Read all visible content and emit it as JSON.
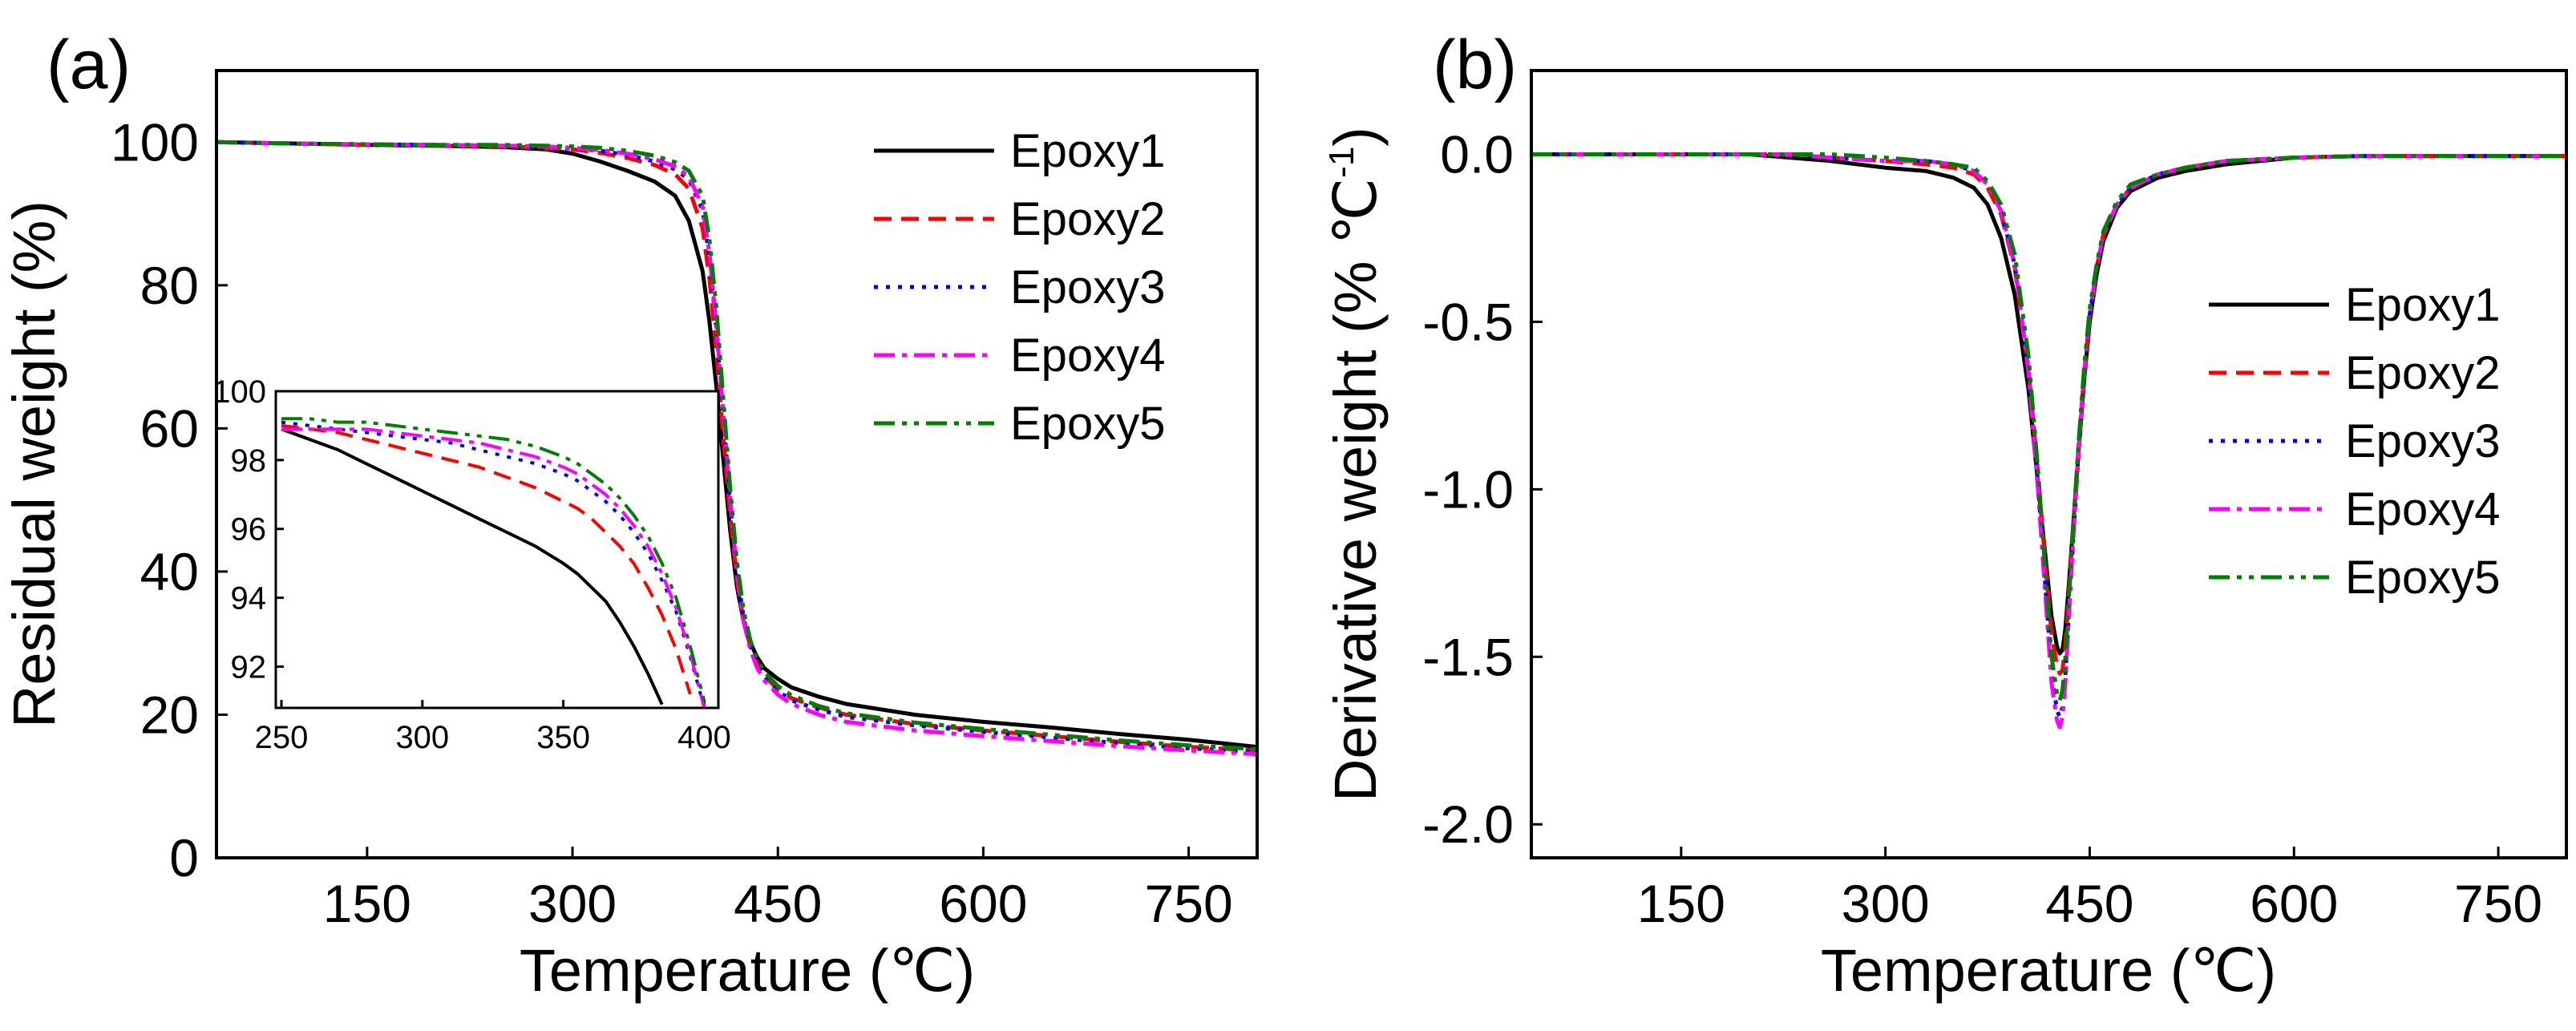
{
  "chart_data": [
    {
      "type": "line",
      "panel_label": "(a)",
      "xlabel": "Temperature (℃)",
      "ylabel": "Residual weight (%)",
      "xlim": [
        40,
        800
      ],
      "ylim": [
        0,
        110
      ],
      "x_ticks": [
        150,
        300,
        450,
        600,
        750
      ],
      "x_tick_labels": [
        "150",
        "300",
        "450",
        "600",
        "750"
      ],
      "y_ticks": [
        0,
        20,
        40,
        60,
        80,
        100
      ],
      "y_tick_labels": [
        "0",
        "20",
        "40",
        "60",
        "80",
        "100"
      ],
      "legend_position": "top-right",
      "x": [
        40,
        100,
        150,
        200,
        250,
        280,
        300,
        320,
        340,
        360,
        375,
        385,
        395,
        400,
        405,
        410,
        415,
        420,
        425,
        430,
        435,
        440,
        450,
        460,
        480,
        500,
        550,
        600,
        650,
        700,
        750,
        800
      ],
      "series": [
        {
          "name": "Epoxy1",
          "color": "#000000",
          "dash": "",
          "values": [
            100,
            99.8,
            99.6,
            99.5,
            99.3,
            99.0,
            98.4,
            97.3,
            96.0,
            94.5,
            92.5,
            89.0,
            82.0,
            75.0,
            66.0,
            56.0,
            46.0,
            38.0,
            33.0,
            30.0,
            28.0,
            26.5,
            25.0,
            23.8,
            22.5,
            21.5,
            20.0,
            19.0,
            18.2,
            17.3,
            16.5,
            15.5
          ]
        },
        {
          "name": "Epoxy2",
          "color": "#ff0000",
          "dash": "22,12",
          "values": [
            100,
            99.8,
            99.6,
            99.5,
            99.4,
            99.2,
            99.0,
            98.5,
            97.8,
            96.8,
            95.5,
            93.5,
            88.0,
            81.0,
            71.0,
            59.0,
            48.0,
            39.0,
            33.0,
            29.5,
            27.0,
            25.5,
            23.5,
            22.3,
            21.0,
            20.0,
            18.7,
            17.8,
            17.0,
            16.2,
            15.5,
            15.0
          ]
        },
        {
          "name": "Epoxy3",
          "color": "#0000ff",
          "dash": "5,10",
          "values": [
            100,
            99.8,
            99.7,
            99.6,
            99.5,
            99.3,
            99.1,
            98.8,
            98.2,
            97.3,
            96.2,
            94.8,
            90.5,
            84.0,
            74.0,
            62.0,
            50.0,
            40.0,
            33.5,
            29.5,
            27.0,
            25.3,
            23.3,
            22.0,
            20.7,
            19.7,
            18.5,
            17.6,
            16.8,
            16.0,
            15.3,
            14.8
          ]
        },
        {
          "name": "Epoxy4",
          "color": "#ff00ff",
          "dash": "26,9,6,9",
          "values": [
            100,
            99.8,
            99.7,
            99.6,
            99.5,
            99.4,
            99.2,
            98.9,
            98.4,
            97.6,
            96.6,
            95.2,
            91.0,
            84.5,
            74.5,
            62.5,
            50.5,
            40.0,
            33.0,
            29.0,
            26.5,
            24.8,
            22.8,
            21.5,
            20.0,
            19.0,
            17.8,
            17.0,
            16.3,
            15.6,
            15.0,
            14.5
          ]
        },
        {
          "name": "Epoxy5",
          "color": "#008000",
          "dash": "26,9,6,9,6,9",
          "values": [
            100,
            99.8,
            99.7,
            99.6,
            99.6,
            99.5,
            99.4,
            99.2,
            98.8,
            98.1,
            97.2,
            96.0,
            92.5,
            86.5,
            77.0,
            64.5,
            52.0,
            41.5,
            34.5,
            30.3,
            27.7,
            26.0,
            24.0,
            22.7,
            21.2,
            20.2,
            18.9,
            18.0,
            17.2,
            16.4,
            15.7,
            15.2
          ]
        }
      ],
      "inset": {
        "xlim": [
          248,
          405
        ],
        "ylim": [
          90.8,
          100
        ],
        "x_ticks": [
          250,
          300,
          350,
          400
        ],
        "x_tick_labels": [
          "250",
          "300",
          "350",
          "400"
        ],
        "y_ticks": [
          92,
          94,
          96,
          98,
          100
        ],
        "y_tick_labels": [
          "92",
          "94",
          "96",
          "98",
          "100"
        ],
        "x": [
          250,
          260,
          270,
          280,
          290,
          300,
          310,
          320,
          330,
          340,
          350,
          355,
          360,
          365,
          370,
          375,
          380,
          385,
          390,
          395,
          400
        ],
        "series": [
          {
            "name": "Epoxy1",
            "values": [
              98.9,
              98.6,
              98.3,
              97.9,
              97.5,
              97.1,
              96.7,
              96.3,
              95.9,
              95.5,
              95.0,
              94.7,
              94.3,
              93.9,
              93.3,
              92.6,
              91.8,
              90.9,
              null,
              null,
              null
            ]
          },
          {
            "name": "Epoxy2",
            "values": [
              99.0,
              98.9,
              98.8,
              98.6,
              98.4,
              98.2,
              98.0,
              97.8,
              97.5,
              97.2,
              96.8,
              96.6,
              96.3,
              95.9,
              95.5,
              95.0,
              94.3,
              93.5,
              92.5,
              91.2,
              null
            ]
          },
          {
            "name": "Epoxy3",
            "values": [
              99.1,
              99.0,
              98.9,
              98.8,
              98.7,
              98.6,
              98.5,
              98.3,
              98.1,
              97.9,
              97.6,
              97.4,
              97.1,
              96.8,
              96.4,
              95.9,
              95.3,
              94.5,
              93.6,
              92.3,
              90.8
            ]
          },
          {
            "name": "Epoxy4",
            "values": [
              98.9,
              98.9,
              98.9,
              98.9,
              98.8,
              98.7,
              98.6,
              98.5,
              98.3,
              98.1,
              97.8,
              97.6,
              97.3,
              97.0,
              96.6,
              96.1,
              95.5,
              94.7,
              93.7,
              92.4,
              90.8
            ]
          },
          {
            "name": "Epoxy5",
            "values": [
              99.2,
              99.2,
              99.1,
              99.1,
              99.0,
              98.9,
              98.8,
              98.7,
              98.6,
              98.4,
              98.1,
              97.9,
              97.6,
              97.3,
              96.9,
              96.4,
              95.8,
              95.0,
              94.0,
              92.6,
              91.0
            ]
          }
        ]
      }
    },
    {
      "type": "line",
      "panel_label": "(b)",
      "xlabel": "Temperature (℃)",
      "ylabel_main": "Derivative weight (% ℃",
      "ylabel_sup": "-1",
      "ylabel_close": ")",
      "xlim": [
        40,
        800
      ],
      "ylim": [
        -2.1,
        0.25
      ],
      "x_ticks": [
        150,
        300,
        450,
        600,
        750
      ],
      "x_tick_labels": [
        "150",
        "300",
        "450",
        "600",
        "750"
      ],
      "y_ticks": [
        0.0,
        -0.5,
        -1.0,
        -1.5,
        -2.0
      ],
      "y_tick_labels": [
        "0.0",
        "-0.5",
        "-1.0",
        "-1.5",
        "-2.0"
      ],
      "legend_position": "center-right",
      "x": [
        40,
        100,
        150,
        200,
        230,
        260,
        300,
        330,
        350,
        365,
        375,
        385,
        395,
        405,
        412,
        418,
        422,
        426,
        428,
        430,
        432,
        434,
        438,
        442,
        446,
        450,
        455,
        460,
        470,
        480,
        500,
        520,
        550,
        600,
        650,
        700,
        750,
        800
      ],
      "series": [
        {
          "name": "Epoxy1",
          "color": "#000000",
          "dash": "",
          "values": [
            0,
            0,
            0,
            0,
            -0.01,
            -0.02,
            -0.04,
            -0.05,
            -0.07,
            -0.1,
            -0.15,
            -0.25,
            -0.42,
            -0.7,
            -0.98,
            -1.22,
            -1.38,
            -1.47,
            -1.49,
            -1.48,
            -1.42,
            -1.32,
            -1.1,
            -0.88,
            -0.67,
            -0.5,
            -0.36,
            -0.26,
            -0.16,
            -0.11,
            -0.07,
            -0.05,
            -0.03,
            -0.01,
            -0.005,
            -0.005,
            -0.005,
            -0.005
          ]
        },
        {
          "name": "Epoxy2",
          "color": "#ff0000",
          "dash": "22,12",
          "values": [
            0,
            0,
            0,
            0,
            0,
            -0.01,
            -0.02,
            -0.03,
            -0.04,
            -0.06,
            -0.1,
            -0.18,
            -0.34,
            -0.64,
            -0.95,
            -1.25,
            -1.43,
            -1.53,
            -1.55,
            -1.54,
            -1.47,
            -1.35,
            -1.1,
            -0.86,
            -0.65,
            -0.48,
            -0.34,
            -0.24,
            -0.15,
            -0.1,
            -0.06,
            -0.04,
            -0.02,
            -0.01,
            -0.005,
            -0.005,
            -0.005,
            -0.005
          ]
        },
        {
          "name": "Epoxy3",
          "color": "#0000ff",
          "dash": "5,10",
          "values": [
            0,
            0,
            0,
            0,
            0,
            -0.01,
            -0.02,
            -0.02,
            -0.03,
            -0.05,
            -0.09,
            -0.17,
            -0.33,
            -0.64,
            -0.98,
            -1.32,
            -1.55,
            -1.66,
            -1.68,
            -1.65,
            -1.56,
            -1.42,
            -1.14,
            -0.88,
            -0.65,
            -0.48,
            -0.34,
            -0.24,
            -0.15,
            -0.1,
            -0.06,
            -0.04,
            -0.02,
            -0.01,
            -0.005,
            -0.005,
            -0.005,
            -0.005
          ]
        },
        {
          "name": "Epoxy4",
          "color": "#ff00ff",
          "dash": "26,9,6,9",
          "values": [
            0,
            0,
            0,
            0,
            0,
            -0.01,
            -0.02,
            -0.02,
            -0.03,
            -0.05,
            -0.09,
            -0.17,
            -0.33,
            -0.65,
            -1.0,
            -1.35,
            -1.58,
            -1.69,
            -1.71,
            -1.68,
            -1.58,
            -1.43,
            -1.14,
            -0.88,
            -0.65,
            -0.48,
            -0.34,
            -0.24,
            -0.15,
            -0.1,
            -0.06,
            -0.04,
            -0.02,
            -0.01,
            -0.005,
            -0.005,
            -0.005,
            -0.005
          ]
        },
        {
          "name": "Epoxy5",
          "color": "#008000",
          "dash": "26,9,6,9,6,9",
          "values": [
            0,
            0,
            0,
            0,
            0,
            0,
            -0.01,
            -0.02,
            -0.03,
            -0.04,
            -0.08,
            -0.15,
            -0.3,
            -0.6,
            -0.94,
            -1.28,
            -1.5,
            -1.61,
            -1.63,
            -1.6,
            -1.51,
            -1.37,
            -1.1,
            -0.85,
            -0.63,
            -0.46,
            -0.33,
            -0.23,
            -0.14,
            -0.09,
            -0.06,
            -0.04,
            -0.02,
            -0.01,
            -0.005,
            -0.005,
            -0.005,
            -0.005
          ]
        }
      ]
    }
  ]
}
